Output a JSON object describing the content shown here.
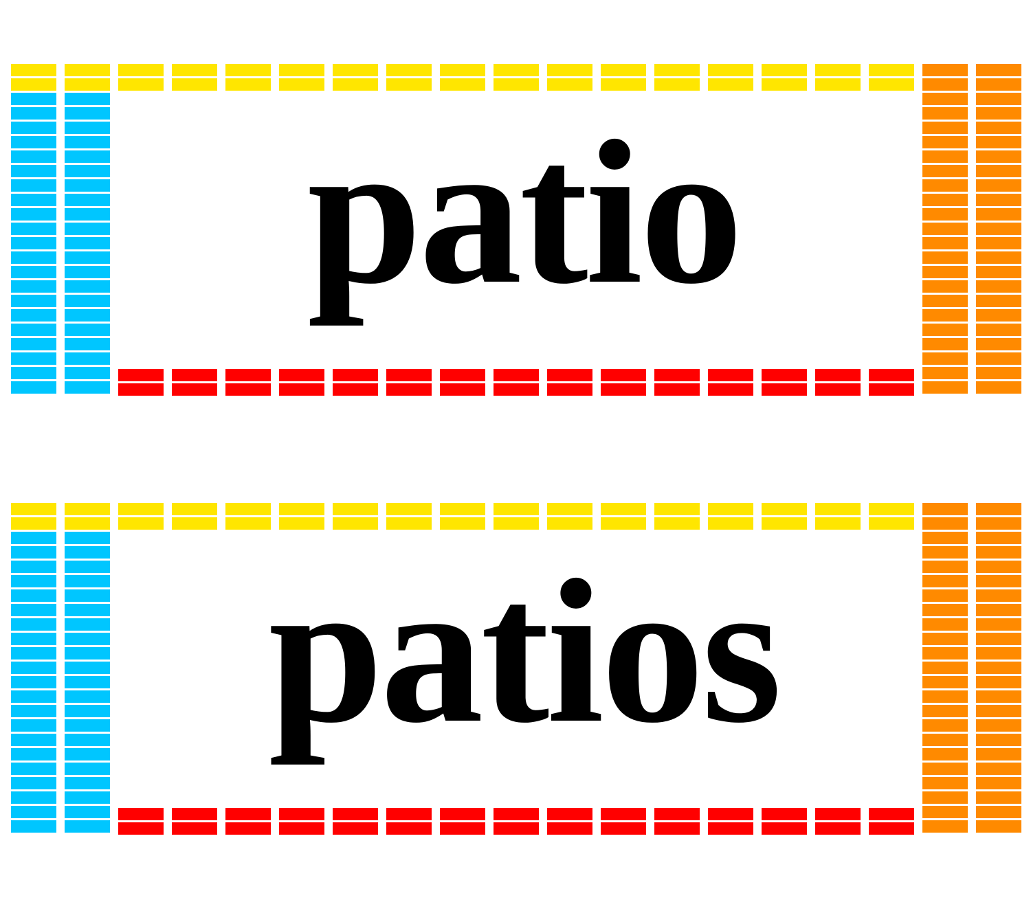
{
  "cards": [
    {
      "word": "patio"
    },
    {
      "word": "patios"
    }
  ],
  "colors": {
    "top": "#FFE600",
    "left": "#00C6FF",
    "right": "#FF8A00",
    "bottom": "#FF0000",
    "text": "#000000"
  }
}
